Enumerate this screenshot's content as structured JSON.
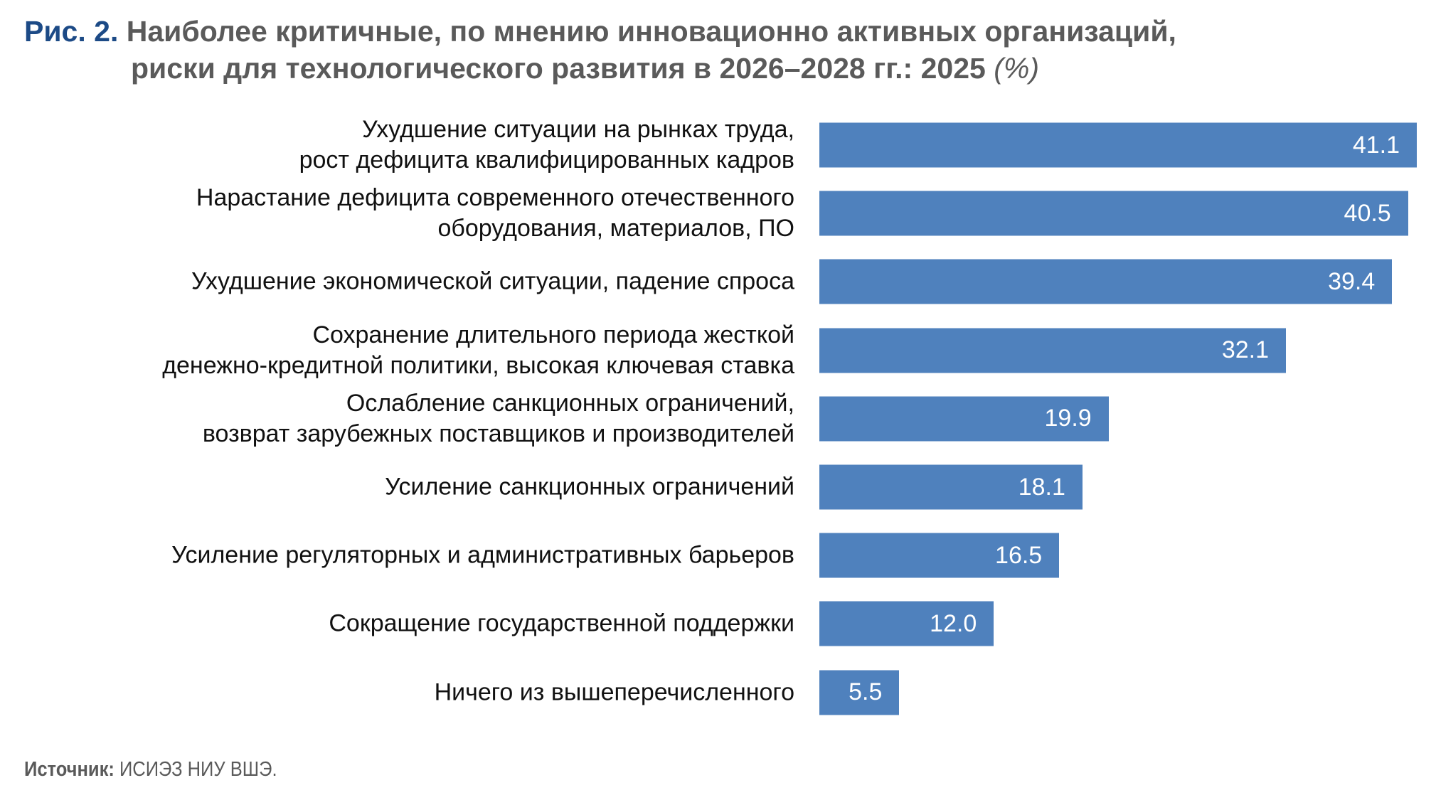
{
  "title": {
    "figure_label": "Рис. 2.",
    "line1": "Наиболее критичные, по мнению инновационно активных организаций,",
    "line2": "риски для технологического развития в 2026–2028 гг.: 2025",
    "unit": "(%)"
  },
  "chart_data": {
    "type": "bar",
    "orientation": "horizontal",
    "title": "Наиболее критичные, по мнению инновационно активных организаций, риски для технологического развития в 2026–2028 гг.: 2025 (%)",
    "xlabel": "",
    "ylabel": "",
    "xlim": [
      0,
      41.1
    ],
    "grid": false,
    "bar_color": "#4f81bd",
    "categories": [
      [
        "Ухудшение ситуации на рынках труда,",
        "рост дефицита квалифицированных кадров"
      ],
      [
        "Нарастание дефицита современного отечественного",
        "оборудования, материалов, ПО"
      ],
      [
        "Ухудшение экономической ситуации, падение спроса"
      ],
      [
        "Сохранение длительного периода жесткой",
        "денежно-кредитной политики, высокая ключевая ставка"
      ],
      [
        "Ослабление санкционных ограничений,",
        "возврат зарубежных поставщиков и производителей"
      ],
      [
        "Усиление санкционных ограничений"
      ],
      [
        "Усиление регуляторных и административных барьеров"
      ],
      [
        "Сокращение государственной поддержки"
      ],
      [
        "Ничего из вышеперечисленного"
      ]
    ],
    "values": [
      41.1,
      40.5,
      39.4,
      32.1,
      19.9,
      18.1,
      16.5,
      12.0,
      5.5
    ],
    "value_labels": [
      "41.1",
      "40.5",
      "39.4",
      "32.1",
      "19.9",
      "18.1",
      "16.5",
      "12.0",
      "5.5"
    ]
  },
  "source": {
    "label": "Источник:",
    "text": "ИСИЭЗ НИУ ВШЭ."
  }
}
